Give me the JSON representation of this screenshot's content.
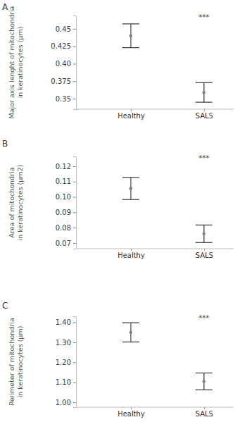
{
  "chart_data": [
    {
      "type": "scatter",
      "panel": "A",
      "y_label": [
        "Major axis lenght of mitochondria",
        "in keratinocytes (µm)"
      ],
      "categories": [
        "Healthy",
        "SALS"
      ],
      "values": [
        0.44,
        0.359
      ],
      "errors": [
        0.017,
        0.014
      ],
      "annotation": "***",
      "color": "#808080",
      "ylim": [
        0.335,
        0.469
      ],
      "yticks": [
        0.35,
        0.375,
        {
          "value": 0.4,
          "label": "0.40"
        },
        0.425,
        0.45
      ]
    },
    {
      "type": "scatter",
      "panel": "B",
      "y_label": [
        "Area of mitochondria",
        "in keratinocytes (µm2)"
      ],
      "categories": [
        "Healthy",
        "SALS"
      ],
      "values": [
        0.1055,
        0.076
      ],
      "errors": [
        0.0072,
        0.0057
      ],
      "annotation": "***",
      "color": "#808080",
      "ylim": [
        0.0663,
        0.1264
      ],
      "yticks": [
        0.07,
        0.08,
        0.09,
        {
          "value": 0.1,
          "label": "0.10"
        },
        0.11,
        0.12
      ]
    },
    {
      "type": "scatter",
      "panel": "C",
      "y_label": [
        "Perimeter of mitochondria",
        "in keratinocytes (µm)"
      ],
      "categories": [
        "Healthy",
        "SALS"
      ],
      "values": [
        1.35,
        1.105
      ],
      "errors": [
        0.048,
        0.042
      ],
      "annotation": "***",
      "color": "#808080",
      "ylim": [
        0.976,
        1.43
      ],
      "yticks": [
        {
          "value": 1.0,
          "label": "1.00"
        },
        {
          "value": 1.1,
          "label": "1.10"
        },
        {
          "value": 1.2,
          "label": "1.20"
        },
        {
          "value": 1.3,
          "label": "1.30"
        },
        {
          "value": 1.4,
          "label": "1.40"
        }
      ]
    }
  ]
}
